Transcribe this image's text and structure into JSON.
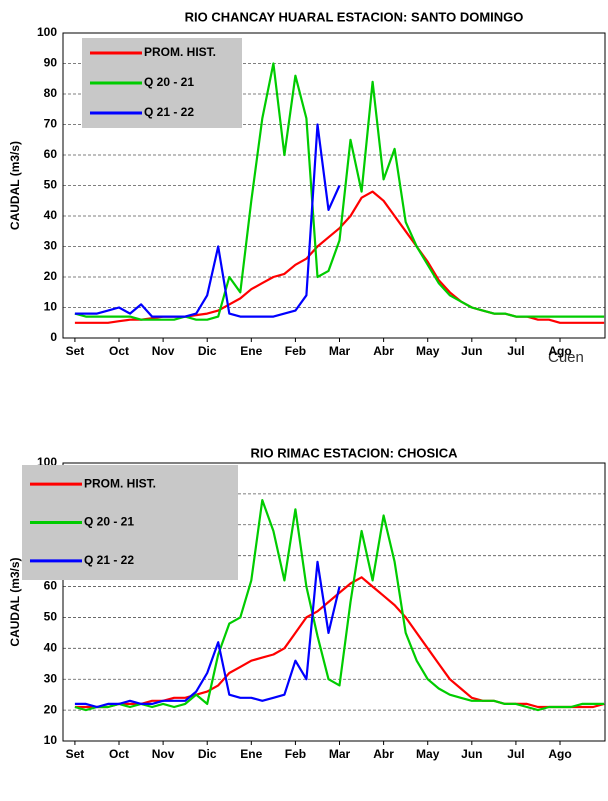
{
  "chart_data": [
    {
      "type": "line",
      "title": "RIO CHANCAY HUARAL ESTACION:  SANTO DOMINGO",
      "y_label": "CAUDAL (m3/s)",
      "grid": true,
      "legend": "upper left",
      "x": [
        0,
        0.25,
        0.5,
        0.75,
        1,
        1.25,
        1.5,
        1.75,
        2,
        2.25,
        2.5,
        2.75,
        3,
        3.25,
        3.5,
        3.75,
        4,
        4.25,
        4.5,
        4.75,
        5,
        5.25,
        5.5,
        5.75,
        6,
        6.25,
        6.5,
        6.75,
        7,
        7.25,
        7.5,
        7.75,
        8,
        8.25,
        8.5,
        8.75,
        9,
        9.25,
        9.5,
        9.75,
        10,
        10.25,
        10.5,
        10.75,
        11,
        11.25,
        11.5,
        11.75,
        12
      ],
      "xlim": [
        -0.27,
        12.02
      ],
      "xticks": [
        {
          "value": 0,
          "label": "Set"
        },
        {
          "value": 1,
          "label": "Oct"
        },
        {
          "value": 2,
          "label": "Nov"
        },
        {
          "value": 3,
          "label": "Dic"
        },
        {
          "value": 4,
          "label": "Ene"
        },
        {
          "value": 5,
          "label": "Feb"
        },
        {
          "value": 6,
          "label": "Mar"
        },
        {
          "value": 7,
          "label": "Abr"
        },
        {
          "value": 8,
          "label": "May"
        },
        {
          "value": 9,
          "label": "Jun"
        },
        {
          "value": 10,
          "label": "Jul"
        },
        {
          "value": 11,
          "label": "Ago"
        }
      ],
      "ylim": [
        0,
        100
      ],
      "yticks": [
        0,
        10,
        20,
        30,
        40,
        50,
        60,
        70,
        80,
        90,
        100
      ],
      "series": [
        {
          "name": "PROM. HIST.",
          "color": "#ff0000",
          "values": [
            5,
            5,
            5,
            5,
            5.5,
            6,
            6,
            6.5,
            7,
            7,
            7,
            7.5,
            8,
            9,
            11,
            13,
            16,
            18,
            20,
            21,
            24,
            26,
            30,
            33,
            36,
            40,
            46,
            48,
            45,
            40,
            35,
            30,
            25,
            19,
            15,
            12,
            10,
            9,
            8,
            8,
            7,
            7,
            6,
            6,
            5,
            5,
            5,
            5,
            5
          ]
        },
        {
          "name": "Q 20 - 21",
          "color": "#00cc00",
          "values": [
            8,
            7,
            7,
            7,
            7,
            7,
            6,
            6,
            6,
            6,
            7,
            6,
            6,
            7,
            20,
            15,
            45,
            72,
            90,
            60,
            86,
            72,
            20,
            22,
            32,
            65,
            48,
            84,
            52,
            62,
            38,
            30,
            24,
            18,
            14,
            12,
            10,
            9,
            8,
            8,
            7,
            7,
            7,
            7,
            7,
            7,
            7,
            7,
            7
          ]
        },
        {
          "name": "Q 21 - 22",
          "color": "#0000ff",
          "values": [
            8,
            8,
            8,
            9,
            10,
            8,
            11,
            7,
            7,
            7,
            7,
            8,
            14,
            30,
            8,
            7,
            7,
            7,
            7,
            8,
            9,
            14,
            70,
            42,
            50,
            null,
            null,
            null,
            null,
            null,
            null,
            null,
            null,
            null,
            null,
            null,
            null,
            null,
            null,
            null,
            null,
            null,
            null,
            null,
            null,
            null,
            null,
            null,
            null
          ]
        }
      ]
    },
    {
      "type": "line",
      "title": "RIO RIMAC  ESTACION:  CHOSICA",
      "y_label": "CAUDAL (m3/s)",
      "grid": true,
      "legend": "upper left",
      "x": [
        0,
        0.25,
        0.5,
        0.75,
        1,
        1.25,
        1.5,
        1.75,
        2,
        2.25,
        2.5,
        2.75,
        3,
        3.25,
        3.5,
        3.75,
        4,
        4.25,
        4.5,
        4.75,
        5,
        5.25,
        5.5,
        5.75,
        6,
        6.25,
        6.5,
        6.75,
        7,
        7.25,
        7.5,
        7.75,
        8,
        8.25,
        8.5,
        8.75,
        9,
        9.25,
        9.5,
        9.75,
        10,
        10.25,
        10.5,
        10.75,
        11,
        11.25,
        11.5,
        11.75,
        12
      ],
      "xlim": [
        -0.27,
        12.02
      ],
      "xticks": [
        {
          "value": 0,
          "label": "Set"
        },
        {
          "value": 1,
          "label": "Oct"
        },
        {
          "value": 2,
          "label": "Nov"
        },
        {
          "value": 3,
          "label": "Dic"
        },
        {
          "value": 4,
          "label": "Ene"
        },
        {
          "value": 5,
          "label": "Feb"
        },
        {
          "value": 6,
          "label": "Mar"
        },
        {
          "value": 7,
          "label": "Abr"
        },
        {
          "value": 8,
          "label": "May"
        },
        {
          "value": 9,
          "label": "Jun"
        },
        {
          "value": 10,
          "label": "Jul"
        },
        {
          "value": 11,
          "label": "Ago"
        }
      ],
      "ylim": [
        10,
        100
      ],
      "yticks": [
        10,
        20,
        30,
        40,
        50,
        60,
        70,
        80,
        90,
        100
      ],
      "series": [
        {
          "name": "PROM. HIST.",
          "color": "#ff0000",
          "values": [
            21,
            21,
            21,
            21,
            22,
            22,
            22,
            23,
            23,
            24,
            24,
            25,
            26,
            28,
            32,
            34,
            36,
            37,
            38,
            40,
            45,
            50,
            52,
            55,
            58,
            61,
            63,
            60,
            57,
            54,
            50,
            45,
            40,
            35,
            30,
            27,
            24,
            23,
            23,
            22,
            22,
            22,
            21,
            21,
            21,
            21,
            21,
            21,
            22
          ]
        },
        {
          "name": "Q 20 - 21",
          "color": "#00cc00",
          "values": [
            21,
            20,
            21,
            21,
            22,
            21,
            22,
            21,
            22,
            21,
            22,
            25,
            22,
            38,
            48,
            50,
            62,
            88,
            78,
            62,
            85,
            60,
            44,
            30,
            28,
            55,
            78,
            62,
            83,
            68,
            45,
            36,
            30,
            27,
            25,
            24,
            23,
            23,
            23,
            22,
            22,
            21,
            20,
            21,
            21,
            21,
            22,
            22,
            22
          ]
        },
        {
          "name": "Q 21 - 22",
          "color": "#0000ff",
          "values": [
            22,
            22,
            21,
            22,
            22,
            23,
            22,
            22,
            23,
            23,
            23,
            26,
            32,
            42,
            25,
            24,
            24,
            23,
            24,
            25,
            36,
            30,
            68,
            45,
            60,
            null,
            null,
            null,
            null,
            null,
            null,
            null,
            null,
            null,
            null,
            null,
            null,
            null,
            null,
            null,
            null,
            null,
            null,
            null,
            null,
            null,
            null,
            null,
            null
          ]
        }
      ]
    }
  ],
  "background_text": "Cuen"
}
